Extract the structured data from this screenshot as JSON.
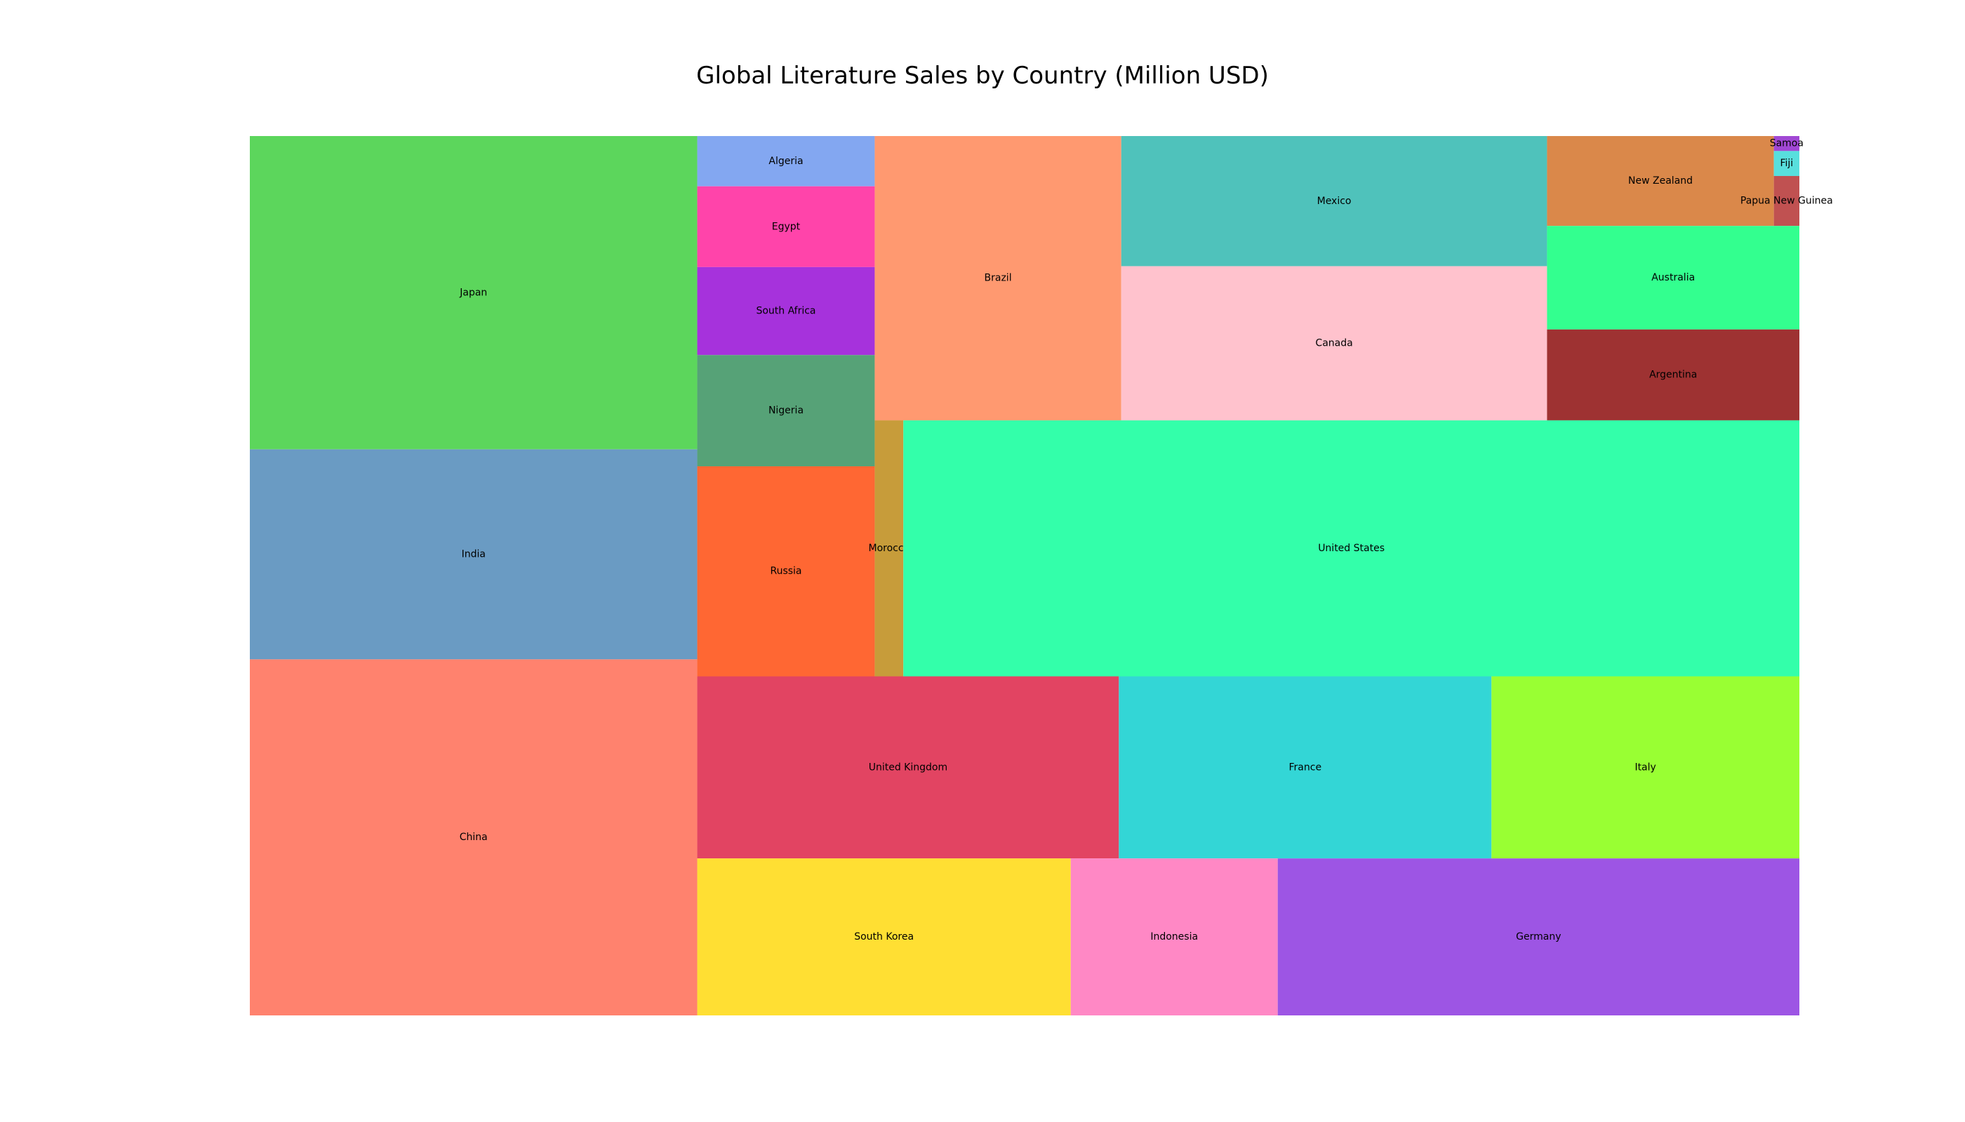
{
  "chart_data": {
    "type": "treemap",
    "title": "Global Literature Sales by Country (Million USD)",
    "units": "Million USD",
    "items": [
      {
        "label": "China",
        "value": 5000,
        "color": "#ff826e"
      },
      {
        "label": "India",
        "value": 2950,
        "color": "#6a9bc3"
      },
      {
        "label": "Japan",
        "value": 4400,
        "color": "#5cd65c"
      },
      {
        "label": "United States",
        "value": 7200,
        "color": "#33ffaa"
      },
      {
        "label": "Morocco",
        "value": 230,
        "color": "#c79c3a"
      },
      {
        "label": "Brazil",
        "value": 2200,
        "color": "#ff9970"
      },
      {
        "label": "Russia",
        "value": 1170,
        "color": "#ff6733"
      },
      {
        "label": "Nigeria",
        "value": 620,
        "color": "#56a277"
      },
      {
        "label": "South Africa",
        "value": 490,
        "color": "#a632dc"
      },
      {
        "label": "Egypt",
        "value": 450,
        "color": "#ff44aa"
      },
      {
        "label": "Algeria",
        "value": 280,
        "color": "#83a7f1"
      },
      {
        "label": "Mexico",
        "value": 1740,
        "color": "#4fc2bb"
      },
      {
        "label": "Canada",
        "value": 2060,
        "color": "#ffc2cd"
      },
      {
        "label": "Argentina",
        "value": 720,
        "color": "#9e3232"
      },
      {
        "label": "Australia",
        "value": 820,
        "color": "#33ff8f"
      },
      {
        "label": "New Zealand",
        "value": 640,
        "color": "#da884a"
      },
      {
        "label": "Papua New Guinea",
        "value": 40,
        "color": "#c05151"
      },
      {
        "label": "Fiji",
        "value": 20,
        "color": "#58dfdd"
      },
      {
        "label": "Samoa",
        "value": 12,
        "color": "#a148d4"
      },
      {
        "label": "United Kingdom",
        "value": 2410,
        "color": "#e24462"
      },
      {
        "label": "France",
        "value": 2130,
        "color": "#33d6d6"
      },
      {
        "label": "Italy",
        "value": 1760,
        "color": "#99ff33"
      },
      {
        "label": "South Korea",
        "value": 1840,
        "color": "#ffdf33"
      },
      {
        "label": "Indonesia",
        "value": 1020,
        "color": "#ff88c5"
      },
      {
        "label": "Germany",
        "value": 2570,
        "color": "#9d55e4"
      }
    ]
  }
}
